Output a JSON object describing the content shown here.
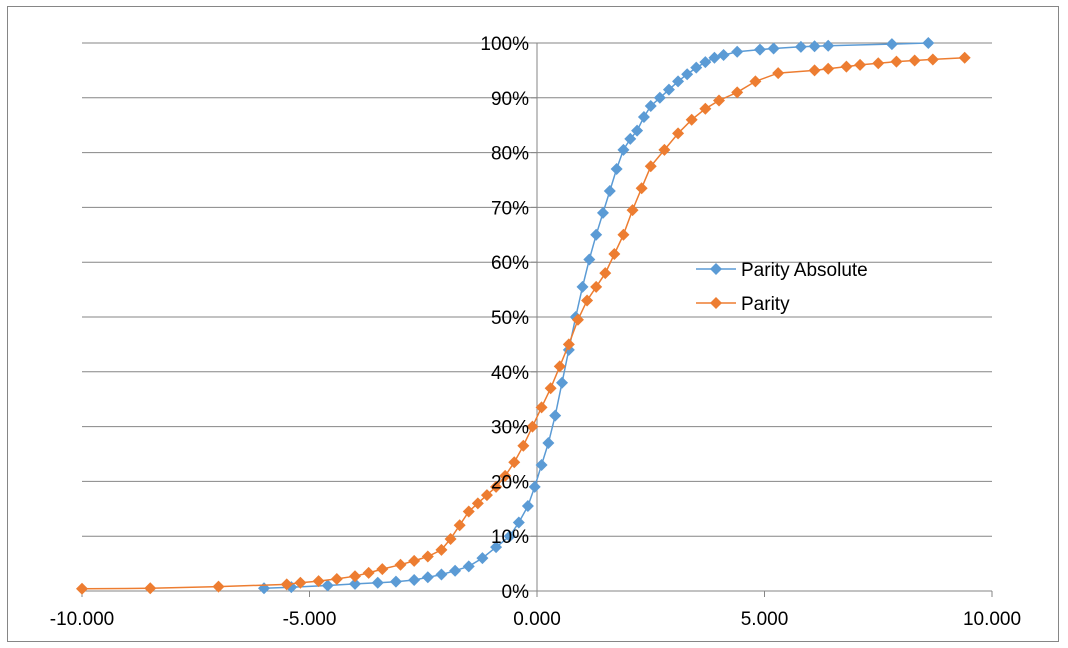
{
  "chart_data": {
    "type": "scatter",
    "title": "",
    "xlabel": "",
    "ylabel": "",
    "xlim": [
      -10,
      10
    ],
    "ylim": [
      0,
      100
    ],
    "x_ticks": [
      -10,
      -5,
      0,
      5,
      10
    ],
    "x_tick_labels": [
      "-10.000",
      "-5.000",
      "0.000",
      "5.000",
      "10.000"
    ],
    "y_ticks": [
      0,
      10,
      20,
      30,
      40,
      50,
      60,
      70,
      80,
      90,
      100
    ],
    "y_tick_labels": [
      "0%",
      "10%",
      "20%",
      "30%",
      "40%",
      "50%",
      "60%",
      "70%",
      "80%",
      "90%",
      "100%"
    ],
    "y_unit": "percent cumulative",
    "grid": "horizontal",
    "legend_position": "right-center",
    "series": [
      {
        "name": "Parity Absolute",
        "color": "#5B9BD5",
        "marker": "diamond",
        "x": [
          -6.0,
          -5.4,
          -4.6,
          -4.0,
          -3.5,
          -3.1,
          -2.7,
          -2.4,
          -2.1,
          -1.8,
          -1.5,
          -1.2,
          -0.9,
          -0.6,
          -0.4,
          -0.2,
          -0.05,
          0.1,
          0.25,
          0.4,
          0.55,
          0.7,
          0.85,
          1.0,
          1.15,
          1.3,
          1.45,
          1.6,
          1.75,
          1.9,
          2.05,
          2.2,
          2.35,
          2.5,
          2.7,
          2.9,
          3.1,
          3.3,
          3.5,
          3.7,
          3.9,
          4.1,
          4.4,
          4.9,
          5.2,
          5.8,
          6.1,
          6.4,
          7.8,
          8.6
        ],
        "y": [
          0.5,
          0.7,
          1.0,
          1.3,
          1.5,
          1.7,
          2.0,
          2.5,
          3.0,
          3.7,
          4.5,
          6.0,
          8.0,
          10.0,
          12.5,
          15.5,
          19.0,
          23.0,
          27.0,
          32.0,
          38.0,
          44.0,
          50.0,
          55.5,
          60.5,
          65.0,
          69.0,
          73.0,
          77.0,
          80.5,
          82.5,
          84.0,
          86.5,
          88.5,
          90.0,
          91.5,
          93.0,
          94.3,
          95.5,
          96.5,
          97.3,
          97.8,
          98.4,
          98.8,
          99.0,
          99.3,
          99.4,
          99.5,
          99.8,
          100.0
        ]
      },
      {
        "name": "Parity",
        "color": "#ED7D31",
        "marker": "diamond",
        "x": [
          -10.0,
          -8.5,
          -7.0,
          -5.5,
          -5.2,
          -4.8,
          -4.4,
          -4.0,
          -3.7,
          -3.4,
          -3.0,
          -2.7,
          -2.4,
          -2.1,
          -1.9,
          -1.7,
          -1.5,
          -1.3,
          -1.1,
          -0.9,
          -0.7,
          -0.5,
          -0.3,
          -0.1,
          0.1,
          0.3,
          0.5,
          0.7,
          0.9,
          1.1,
          1.3,
          1.5,
          1.7,
          1.9,
          2.1,
          2.3,
          2.5,
          2.8,
          3.1,
          3.4,
          3.7,
          4.0,
          4.4,
          4.8,
          5.3,
          6.1,
          6.4,
          6.8,
          7.1,
          7.5,
          7.9,
          8.3,
          8.7,
          9.4
        ],
        "y": [
          0.4,
          0.5,
          0.8,
          1.2,
          1.5,
          1.8,
          2.2,
          2.7,
          3.3,
          4.0,
          4.8,
          5.5,
          6.3,
          7.5,
          9.5,
          12.0,
          14.5,
          16.0,
          17.5,
          19.0,
          21.0,
          23.5,
          26.5,
          30.0,
          33.5,
          37.0,
          41.0,
          45.0,
          49.5,
          53.0,
          55.5,
          58.0,
          61.5,
          65.0,
          69.5,
          73.5,
          77.5,
          80.5,
          83.5,
          86.0,
          88.0,
          89.5,
          91.0,
          93.0,
          94.5,
          95.0,
          95.3,
          95.7,
          96.0,
          96.3,
          96.6,
          96.8,
          97.0,
          97.3
        ]
      }
    ]
  }
}
